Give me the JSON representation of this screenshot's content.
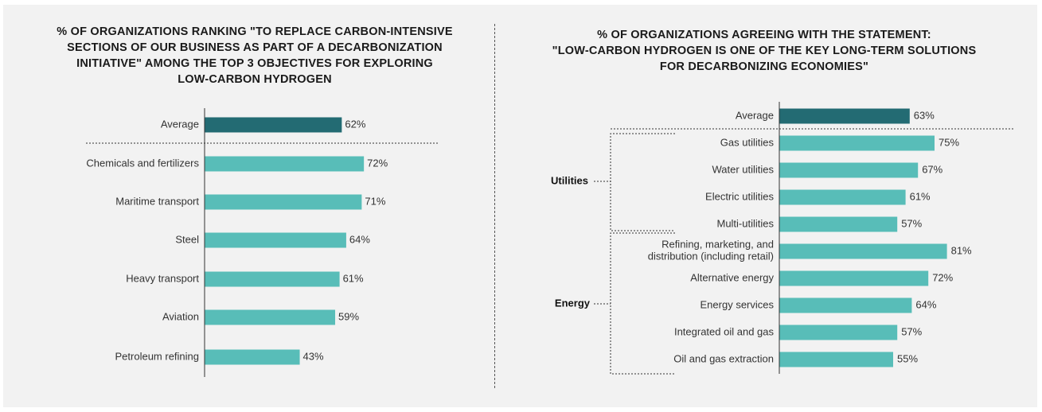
{
  "chart_data": [
    {
      "type": "bar",
      "orientation": "horizontal",
      "title": "% OF ORGANIZATIONS RANKING \"TO REPLACE CARBON-INTENSIVE\nSECTIONS OF OUR BUSINESS AS PART OF A DECARBONIZATION\nINITIATIVE\" AMONG THE TOP 3 OBJECTIVES FOR EXPLORING\nLOW-CARBON HYDROGEN",
      "categories": [
        "Average",
        "Chemicals and fertilizers",
        "Maritime transport",
        "Steel",
        "Heavy transport",
        "Aviation",
        "Petroleum refining"
      ],
      "values": [
        62,
        72,
        71,
        64,
        61,
        59,
        43
      ],
      "labels": [
        "62%",
        "72%",
        "71%",
        "64%",
        "61%",
        "59%",
        "43%"
      ],
      "unit": "%",
      "xlim": [
        0,
        100
      ]
    },
    {
      "type": "bar",
      "orientation": "horizontal",
      "title": "% OF ORGANIZATIONS AGREEING WITH THE STATEMENT:\n\"LOW-CARBON HYDROGEN IS ONE OF THE KEY LONG-TERM SOLUTIONS\nFOR DECARBONIZING ECONOMIES\"",
      "categories": [
        "Average",
        "Gas utilities",
        "Water utilities",
        "Electric utilities",
        "Multi-utilities",
        "Refining, marketing, and distribution (including retail)",
        "Alternative energy",
        "Energy services",
        "Integrated oil and gas",
        "Oil and gas extraction"
      ],
      "category_lines": [
        [
          "Average"
        ],
        [
          "Gas utilities"
        ],
        [
          "Water utilities"
        ],
        [
          "Electric utilities"
        ],
        [
          "Multi-utilities"
        ],
        [
          "Refining, marketing, and",
          "distribution (including retail)"
        ],
        [
          "Alternative energy"
        ],
        [
          "Energy services"
        ],
        [
          "Integrated oil and gas"
        ],
        [
          "Oil and gas extraction"
        ]
      ],
      "values": [
        63,
        75,
        67,
        61,
        57,
        81,
        72,
        64,
        57,
        55
      ],
      "labels": [
        "63%",
        "75%",
        "67%",
        "61%",
        "57%",
        "81%",
        "72%",
        "64%",
        "57%",
        "55%"
      ],
      "unit": "%",
      "xlim": [
        0,
        100
      ],
      "groups": [
        {
          "name": "Utilities",
          "categories": [
            "Gas utilities",
            "Water utilities",
            "Electric utilities",
            "Multi-utilities"
          ]
        },
        {
          "name": "Energy",
          "categories": [
            "Refining, marketing, and distribution (including retail)",
            "Alternative energy",
            "Energy services",
            "Integrated oil and gas",
            "Oil and gas extraction"
          ]
        }
      ]
    }
  ],
  "colors": {
    "average": "#236b73",
    "bar": "#58bdb8"
  }
}
